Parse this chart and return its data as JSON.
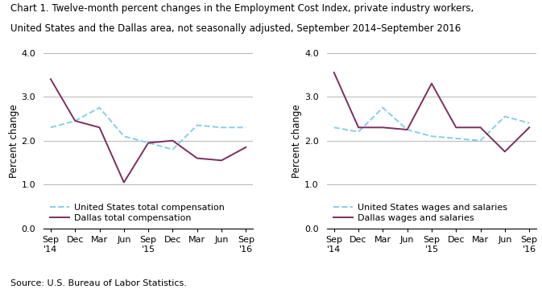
{
  "title_line1": "Chart 1. Twelve-month percent changes in the Employment Cost Index, private industry workers,",
  "title_line2": "United States and the Dallas area, not seasonally adjusted, September 2014–September 2016",
  "source": "Source: U.S. Bureau of Labor Statistics.",
  "ylabel": "Percent change",
  "ylim": [
    0.0,
    4.0
  ],
  "yticks": [
    0.0,
    1.0,
    2.0,
    3.0,
    4.0
  ],
  "left_chart": {
    "us_total_comp": [
      2.3,
      2.45,
      2.75,
      2.1,
      1.95,
      1.8,
      2.35,
      2.3,
      2.3
    ],
    "dallas_total_comp": [
      3.4,
      2.45,
      2.3,
      1.05,
      1.95,
      2.0,
      1.6,
      1.55,
      1.85
    ],
    "legend1": "United States total compensation",
    "legend2": "Dallas total compensation"
  },
  "right_chart": {
    "us_wages_salaries": [
      2.3,
      2.2,
      2.75,
      2.25,
      2.1,
      2.05,
      2.0,
      2.55,
      2.4
    ],
    "dallas_wages_salaries": [
      3.55,
      2.3,
      2.3,
      2.25,
      3.3,
      2.3,
      2.3,
      1.75,
      2.3
    ],
    "legend1": "United States wages and salaries",
    "legend2": "Dallas wages and salaries"
  },
  "us_color": "#87CEEB",
  "dallas_color": "#7B2D5E",
  "grid_color": "#AAAAAA",
  "title_fontsize": 8.5,
  "label_fontsize": 8.5,
  "tick_fontsize": 8.0,
  "legend_fontsize": 8.0,
  "source_fontsize": 8.0
}
